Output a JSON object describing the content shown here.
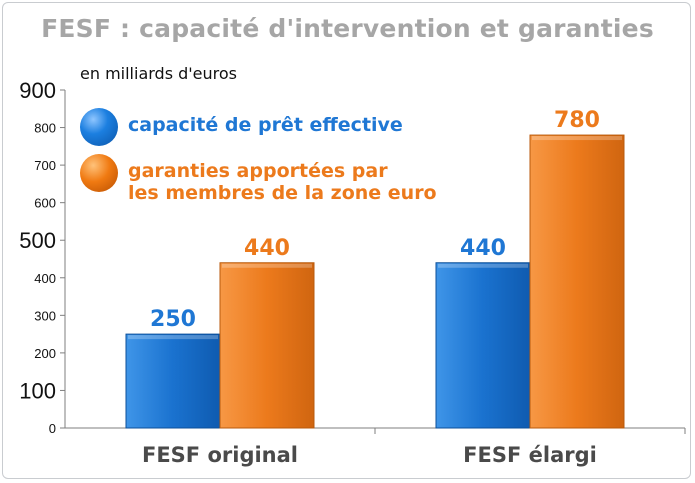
{
  "chart_data": {
    "type": "bar",
    "title": "FESF : capacité d'intervention et garanties",
    "ylabel": "en milliards d'euros",
    "categories": [
      "FESF original",
      "FESF élargi"
    ],
    "series": [
      {
        "name": "capacité de prêt effective",
        "values": [
          250,
          440
        ],
        "color": "#1f77d4"
      },
      {
        "name": "garanties apportées par\nles membres de la zone euro",
        "values": [
          440,
          780
        ],
        "color": "#ec7a1c"
      }
    ],
    "data_labels": [
      [
        "250",
        "440"
      ],
      [
        "440",
        "780"
      ]
    ],
    "ylim": [
      0,
      900
    ],
    "yticks": [
      0,
      100,
      200,
      300,
      400,
      500,
      600,
      700,
      800,
      900
    ],
    "legend_position": "top-left",
    "grid": false
  }
}
